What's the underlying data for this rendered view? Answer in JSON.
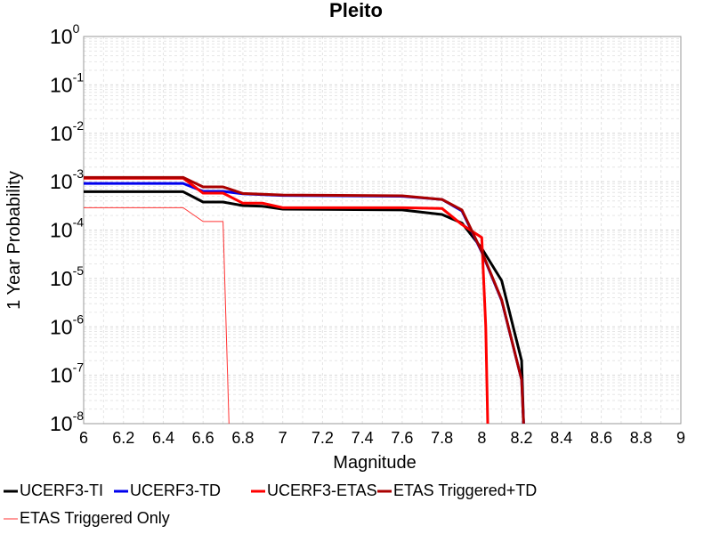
{
  "chart_data": {
    "type": "line",
    "title": "Pleito",
    "xlabel": "Magnitude",
    "ylabel": "1 Year Probability",
    "xlim": [
      6,
      9
    ],
    "ylim": [
      1e-08,
      1
    ],
    "yscale": "log",
    "grid": true,
    "legend_position": "bottom",
    "x_ticks": [
      "6",
      "6.2",
      "6.4",
      "6.6",
      "6.8",
      "7",
      "7.2",
      "7.4",
      "7.6",
      "7.8",
      "8",
      "8.2",
      "8.4",
      "8.6",
      "8.8",
      "9"
    ],
    "y_ticks": [
      {
        "base": "10",
        "exp": "0"
      },
      {
        "base": "10",
        "exp": "-1"
      },
      {
        "base": "10",
        "exp": "-2"
      },
      {
        "base": "10",
        "exp": "-3"
      },
      {
        "base": "10",
        "exp": "-4"
      },
      {
        "base": "10",
        "exp": "-5"
      },
      {
        "base": "10",
        "exp": "-6"
      },
      {
        "base": "10",
        "exp": "-7"
      },
      {
        "base": "10",
        "exp": "-8"
      }
    ],
    "series": [
      {
        "name": "UCERF3-TI",
        "color": "#000000",
        "width": 3,
        "x": [
          6.0,
          6.5,
          6.6,
          6.7,
          6.8,
          6.9,
          7.0,
          7.6,
          7.8,
          7.9,
          8.0,
          8.1,
          8.2,
          8.21
        ],
        "y": [
          0.00062,
          0.00062,
          0.00038,
          0.00038,
          0.00032,
          0.00031,
          0.00027,
          0.00026,
          0.00021,
          0.00014,
          4.2e-05,
          9e-06,
          2e-07,
          1e-08
        ]
      },
      {
        "name": "UCERF3-TD",
        "color": "#0000ee",
        "width": 3,
        "x": [
          6.0,
          6.5,
          6.6,
          6.7,
          6.8,
          7.0,
          7.6,
          7.8,
          7.9,
          8.0,
          8.1,
          8.2,
          8.21
        ],
        "y": [
          0.00092,
          0.00092,
          0.00063,
          0.00063,
          0.00056,
          0.00052,
          0.0005,
          0.00043,
          0.00025,
          3.5e-05,
          3.5e-06,
          8e-08,
          1e-08
        ]
      },
      {
        "name": "UCERF3-ETAS",
        "color": "#ff0000",
        "width": 3,
        "x": [
          6.0,
          6.5,
          6.6,
          6.7,
          6.8,
          6.9,
          7.0,
          7.6,
          7.8,
          7.9,
          8.0,
          8.02,
          8.03
        ],
        "y": [
          0.00118,
          0.00118,
          0.00058,
          0.00058,
          0.00036,
          0.00036,
          0.00029,
          0.00029,
          0.00028,
          0.00013,
          7e-05,
          1e-06,
          1e-08
        ]
      },
      {
        "name": "ETAS Triggered+TD",
        "color": "#aa0000",
        "width": 3,
        "x": [
          6.0,
          6.5,
          6.6,
          6.7,
          6.8,
          7.0,
          7.6,
          7.8,
          7.9,
          8.0,
          8.1,
          8.2,
          8.21
        ],
        "y": [
          0.00122,
          0.00122,
          0.00078,
          0.00078,
          0.00057,
          0.00053,
          0.00051,
          0.00043,
          0.00026,
          3.6e-05,
          3.6e-06,
          8e-08,
          1e-08
        ]
      },
      {
        "name": "ETAS Triggered Only",
        "color": "#ff3333",
        "width": 1,
        "x": [
          6.0,
          6.5,
          6.6,
          6.7,
          6.73
        ],
        "y": [
          0.00029,
          0.00029,
          0.00015,
          0.00015,
          1e-08
        ]
      }
    ]
  }
}
